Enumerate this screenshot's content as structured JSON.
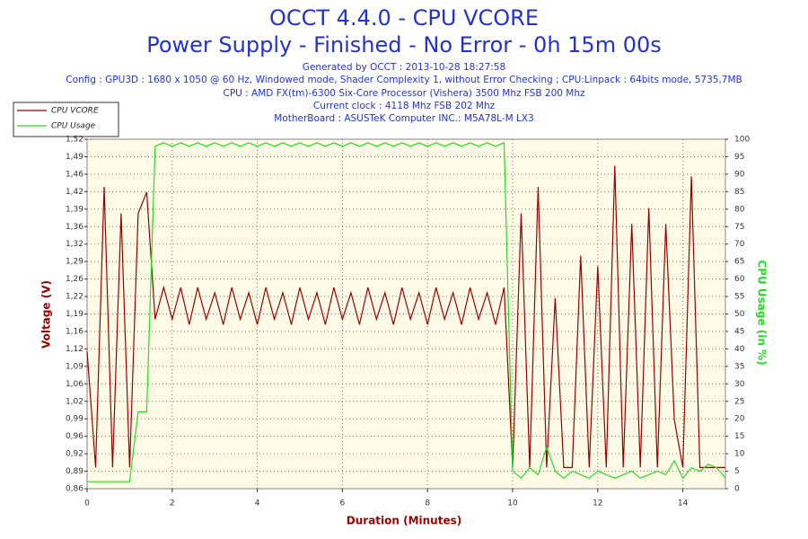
{
  "chart_data": {
    "type": "line",
    "title": "OCCT 4.4.0 - CPU VCORE",
    "subtitle": "Power Supply - Finished - No Error - 0h 15m 00s",
    "info": [
      "Generated by OCCT : 2013-10-28 18:27:58",
      "Config : GPU3D : 1680 x 1050 @ 60 Hz, Windowed mode, Shader Complexity 1, without Error Checking ; CPU:Linpack : 64bits mode, 5735,7MB",
      "CPU : AMD FX(tm)-6300 Six-Core Processor (Vishera) 3500 Mhz FSB 200 Mhz",
      "Current clock : 4118 Mhz FSB 202 Mhz",
      "MotherBoard : ASUSTeK Computer INC.: M5A78L-M LX3"
    ],
    "xlabel": "Duration (Minutes)",
    "ylabel": "Voltage (V)",
    "y2label": "CPU Usage (in %)",
    "grid": true,
    "legend": "top-left",
    "xlim": [
      0,
      15
    ],
    "xticks": [
      0,
      2,
      4,
      6,
      8,
      10,
      12,
      14
    ],
    "ylim": [
      0.86,
      1.52
    ],
    "yticks": [
      {
        "value": 0.86,
        "label": "0,86"
      },
      {
        "value": 0.893,
        "label": "0,89"
      },
      {
        "value": 0.926,
        "label": "0,92"
      },
      {
        "value": 0.959,
        "label": "0,96"
      },
      {
        "value": 0.992,
        "label": "0,99"
      },
      {
        "value": 1.025,
        "label": "1,02"
      },
      {
        "value": 1.058,
        "label": "1,06"
      },
      {
        "value": 1.091,
        "label": "1,09"
      },
      {
        "value": 1.124,
        "label": "1,12"
      },
      {
        "value": 1.157,
        "label": "1,16"
      },
      {
        "value": 1.19,
        "label": "1,19"
      },
      {
        "value": 1.223,
        "label": "1,22"
      },
      {
        "value": 1.256,
        "label": "1,26"
      },
      {
        "value": 1.289,
        "label": "1,29"
      },
      {
        "value": 1.322,
        "label": "1,32"
      },
      {
        "value": 1.355,
        "label": "1,36"
      },
      {
        "value": 1.388,
        "label": "1,39"
      },
      {
        "value": 1.421,
        "label": "1,42"
      },
      {
        "value": 1.454,
        "label": "1,46"
      },
      {
        "value": 1.487,
        "label": "1,49"
      },
      {
        "value": 1.52,
        "label": "1,52"
      }
    ],
    "y2lim": [
      0,
      100
    ],
    "y2ticks": [
      0,
      5,
      10,
      15,
      20,
      25,
      30,
      35,
      40,
      45,
      50,
      55,
      60,
      65,
      70,
      75,
      80,
      85,
      90,
      95,
      100
    ],
    "x": [
      0,
      0.2,
      0.4,
      0.6,
      0.8,
      1,
      1.2,
      1.4,
      1.6,
      1.8,
      2,
      2.2,
      2.4,
      2.6,
      2.8,
      3,
      3.2,
      3.4,
      3.6,
      3.8,
      4,
      4.2,
      4.4,
      4.6,
      4.8,
      5,
      5.2,
      5.4,
      5.6,
      5.8,
      6,
      6.2,
      6.4,
      6.6,
      6.8,
      7,
      7.2,
      7.4,
      7.6,
      7.8,
      8,
      8.2,
      8.4,
      8.6,
      8.8,
      9,
      9.2,
      9.4,
      9.6,
      9.8,
      10,
      10.2,
      10.4,
      10.6,
      10.8,
      11,
      11.2,
      11.4,
      11.6,
      11.8,
      12,
      12.2,
      12.4,
      12.6,
      12.8,
      13,
      13.2,
      13.4,
      13.6,
      13.8,
      14,
      14.2,
      14.4,
      14.6,
      14.8,
      15
    ],
    "series": [
      {
        "name": "CPU VCORE",
        "color": "#990000",
        "values": [
          1.12,
          0.9,
          1.43,
          0.9,
          1.38,
          0.9,
          1.38,
          1.42,
          1.18,
          1.24,
          1.18,
          1.24,
          1.17,
          1.24,
          1.18,
          1.23,
          1.17,
          1.24,
          1.18,
          1.23,
          1.17,
          1.24,
          1.18,
          1.23,
          1.17,
          1.24,
          1.18,
          1.23,
          1.17,
          1.24,
          1.18,
          1.23,
          1.17,
          1.24,
          1.18,
          1.23,
          1.17,
          1.24,
          1.18,
          1.23,
          1.17,
          1.24,
          1.18,
          1.23,
          1.17,
          1.24,
          1.18,
          1.23,
          1.17,
          1.24,
          0.9,
          1.38,
          0.9,
          1.43,
          0.9,
          1.22,
          0.9,
          0.9,
          1.3,
          0.9,
          1.28,
          0.9,
          1.47,
          0.9,
          1.36,
          0.9,
          1.39,
          0.9,
          1.36,
          0.99,
          0.9,
          1.45,
          0.9,
          0.9,
          0.9,
          0.9
        ]
      },
      {
        "name": "CPU Usage",
        "color": "#22dd22",
        "axis": "y2",
        "values": [
          2,
          2,
          2,
          2,
          2,
          2,
          22,
          22,
          98,
          99,
          98,
          99,
          98,
          99,
          98,
          99,
          98,
          99,
          98,
          99,
          98,
          99,
          98,
          99,
          98,
          99,
          98,
          99,
          98,
          99,
          98,
          99,
          98,
          99,
          98,
          99,
          98,
          99,
          98,
          99,
          98,
          99,
          98,
          99,
          98,
          99,
          98,
          99,
          98,
          99,
          5,
          3,
          6,
          4,
          12,
          5,
          3,
          5,
          4,
          3,
          5,
          4,
          3,
          4,
          5,
          3,
          4,
          5,
          4,
          8,
          3,
          6,
          5,
          7,
          6,
          3
        ]
      }
    ]
  }
}
